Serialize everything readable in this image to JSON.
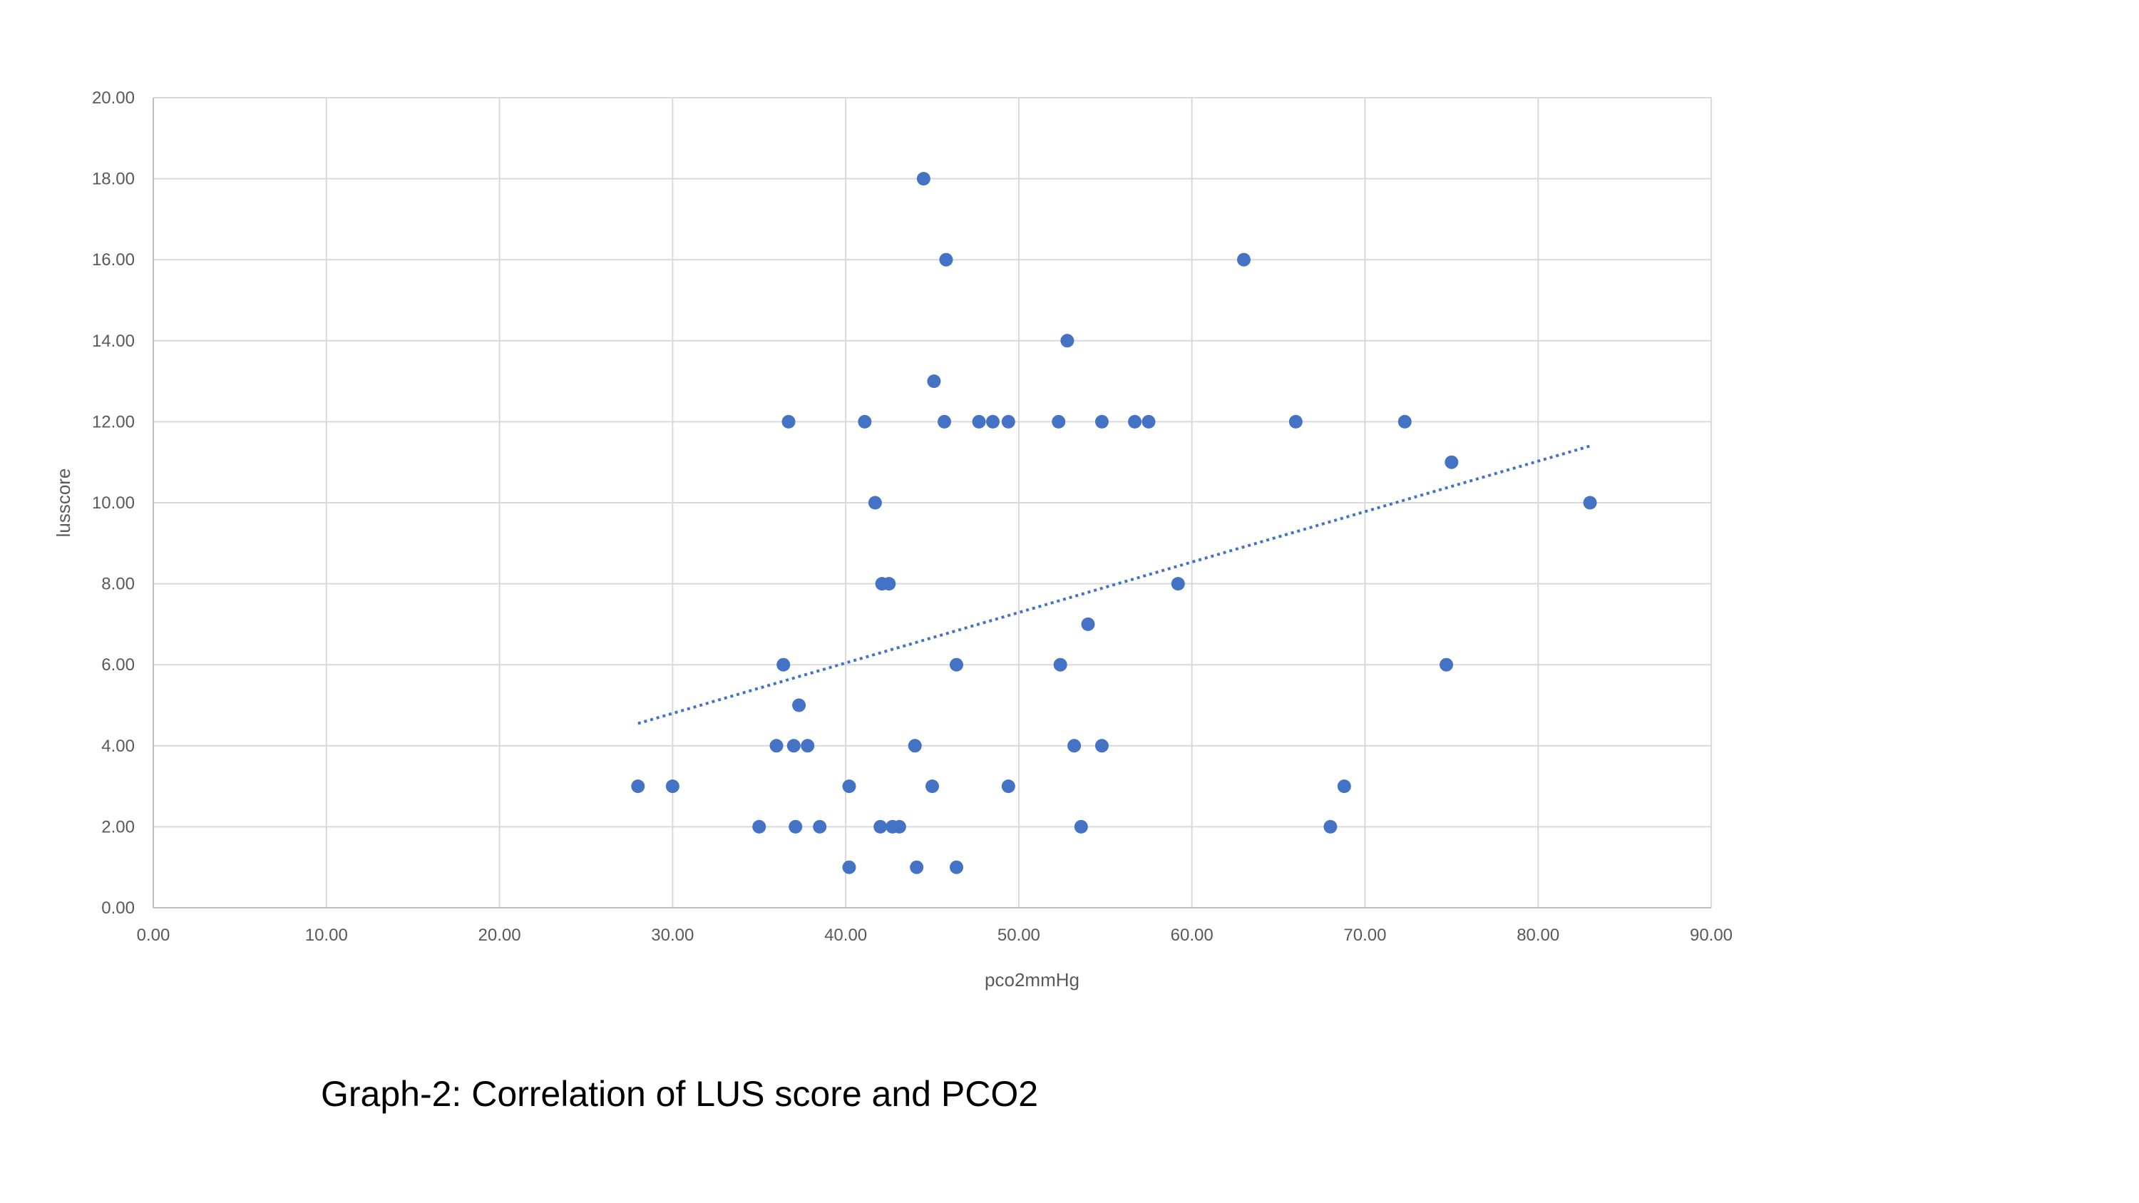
{
  "chart_data": {
    "type": "scatter",
    "title": "",
    "xlabel": "pco2mmHg",
    "ylabel": "lusscore",
    "xlim": [
      0,
      90
    ],
    "ylim": [
      0,
      20
    ],
    "x_ticks": [
      "0.00",
      "10.00",
      "20.00",
      "30.00",
      "40.00",
      "50.00",
      "60.00",
      "70.00",
      "80.00",
      "90.00"
    ],
    "y_ticks": [
      "0.00",
      "2.00",
      "4.00",
      "6.00",
      "8.00",
      "10.00",
      "12.00",
      "14.00",
      "16.00",
      "18.00",
      "20.00"
    ],
    "grid": true,
    "legend": "none",
    "series": [
      {
        "name": "lusscore",
        "color": "#4472C4",
        "points": [
          [
            44.5,
            18
          ],
          [
            45.8,
            16
          ],
          [
            63.0,
            16
          ],
          [
            52.8,
            14
          ],
          [
            45.1,
            13
          ],
          [
            36.7,
            12
          ],
          [
            41.1,
            12
          ],
          [
            45.7,
            12
          ],
          [
            47.7,
            12
          ],
          [
            48.5,
            12
          ],
          [
            49.4,
            12
          ],
          [
            52.3,
            12
          ],
          [
            54.8,
            12
          ],
          [
            56.7,
            12
          ],
          [
            57.5,
            12
          ],
          [
            66.0,
            12
          ],
          [
            72.3,
            12
          ],
          [
            75.0,
            11
          ],
          [
            41.7,
            10
          ],
          [
            83.0,
            10
          ],
          [
            42.1,
            8
          ],
          [
            42.5,
            8
          ],
          [
            59.2,
            8
          ],
          [
            54.0,
            7
          ],
          [
            36.4,
            6
          ],
          [
            46.4,
            6
          ],
          [
            52.4,
            6
          ],
          [
            74.7,
            6
          ],
          [
            37.3,
            5
          ],
          [
            36.0,
            4
          ],
          [
            37.0,
            4
          ],
          [
            37.8,
            4
          ],
          [
            44.0,
            4
          ],
          [
            53.2,
            4
          ],
          [
            54.8,
            4
          ],
          [
            28.0,
            3
          ],
          [
            30.0,
            3
          ],
          [
            40.2,
            3
          ],
          [
            45.0,
            3
          ],
          [
            49.4,
            3
          ],
          [
            68.8,
            3
          ],
          [
            35.0,
            2
          ],
          [
            37.1,
            2
          ],
          [
            38.5,
            2
          ],
          [
            42.0,
            2
          ],
          [
            42.7,
            2
          ],
          [
            43.1,
            2
          ],
          [
            53.6,
            2
          ],
          [
            68.0,
            2
          ],
          [
            40.2,
            1
          ],
          [
            44.1,
            1
          ],
          [
            46.4,
            1
          ]
        ]
      }
    ],
    "trendline": {
      "type": "linear",
      "style": "dotted",
      "color": "#4472C4",
      "x_start": 28.0,
      "y_start": 4.55,
      "x_end": 83.0,
      "y_end": 11.4
    }
  },
  "caption": "Graph-2: Correlation of LUS score and PCO2"
}
